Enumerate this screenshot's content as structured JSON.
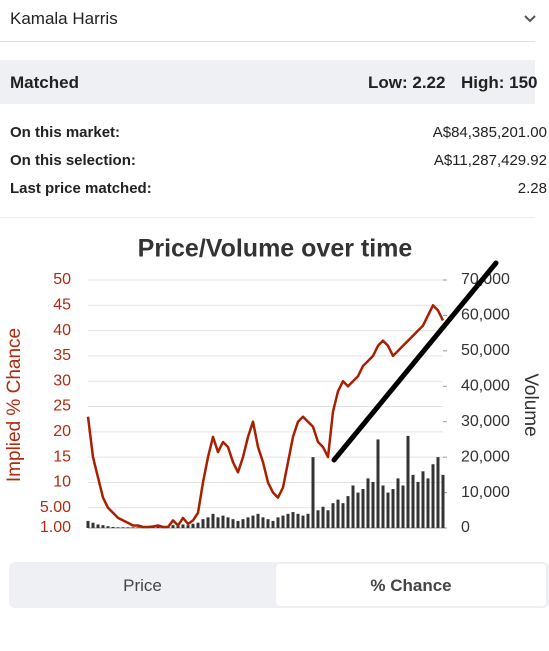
{
  "header": {
    "title": "Kamala Harris"
  },
  "matched": {
    "label": "Matched",
    "low": "Low: 2.22",
    "high": "High: 150"
  },
  "stats": [
    {
      "label": "On this market:",
      "value": "A$84,385,201.00"
    },
    {
      "label": "On this selection:",
      "value": "A$11,287,429.92"
    },
    {
      "label": "Last price matched:",
      "value": "2.28"
    }
  ],
  "chart_data": {
    "type": "line",
    "title": "Price/Volume over time",
    "y_label": "Implied % Chance",
    "y2_label": "Volume",
    "ylim": [
      1,
      50
    ],
    "yticks": [
      {
        "value": 1,
        "label": "1.00"
      },
      {
        "value": 5,
        "label": "5.00"
      },
      10,
      15,
      20,
      25,
      30,
      35,
      40,
      45,
      50
    ],
    "y2lim": [
      0,
      70000
    ],
    "y2ticks": [
      0,
      {
        "value": 10000,
        "label": "10,000"
      },
      {
        "value": 20000,
        "label": "20,000"
      },
      {
        "value": 30000,
        "label": "30,000"
      },
      {
        "value": 40000,
        "label": "40,000"
      },
      {
        "value": 50000,
        "label": "50,000"
      },
      {
        "value": 60000,
        "label": "60,000"
      },
      {
        "value": 70000,
        "label": "70,000"
      }
    ],
    "grid": true,
    "series": [
      {
        "type": "line",
        "color": "#a82000",
        "values": [
          23,
          15,
          11,
          7,
          5,
          4,
          3,
          2.5,
          2,
          1.5,
          1.5,
          1.2,
          1.2,
          1.3,
          1.5,
          1.2,
          1.2,
          2.5,
          1.5,
          3,
          1.8,
          2.5,
          4,
          10,
          15,
          19,
          16,
          18,
          17,
          14,
          12,
          15,
          19,
          22,
          17,
          14,
          10,
          8,
          7,
          9,
          14,
          19,
          22,
          23,
          22,
          21,
          18,
          17,
          15,
          24,
          28,
          30,
          29,
          30,
          31,
          33,
          34,
          35,
          37,
          38,
          37,
          35,
          36,
          37,
          38,
          39,
          40,
          41,
          43,
          45,
          44,
          42
        ]
      },
      {
        "type": "bar",
        "axis": "y2",
        "color": "#333333",
        "values": [
          2000,
          1500,
          1000,
          800,
          500,
          300,
          200,
          200,
          200,
          200,
          200,
          300,
          300,
          300,
          300,
          400,
          500,
          800,
          600,
          1000,
          800,
          1200,
          1500,
          2500,
          3000,
          4000,
          3000,
          3500,
          3000,
          2500,
          2000,
          2500,
          3000,
          3500,
          4000,
          3000,
          2500,
          2000,
          3000,
          3500,
          4000,
          4500,
          4000,
          3500,
          4000,
          20000,
          5000,
          6000,
          5000,
          7000,
          8000,
          7000,
          9000,
          12000,
          10000,
          11000,
          14000,
          13000,
          25000,
          12000,
          10000,
          11000,
          14000,
          12000,
          26000,
          15000,
          13000,
          16000,
          14000,
          18000,
          20000,
          15000
        ]
      }
    ]
  },
  "tabs": [
    "Price",
    "% Chance"
  ]
}
